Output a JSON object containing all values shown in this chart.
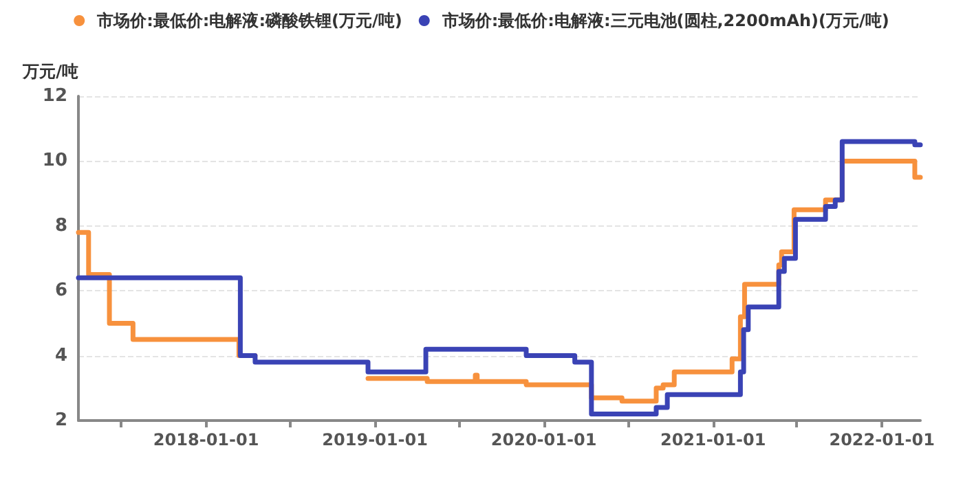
{
  "chart_data": {
    "type": "step",
    "ylabel": "万元/吨",
    "xlim": [
      "2017-03-31",
      "2022-03-25"
    ],
    "xticks": [
      {
        "value": "2017-07-01",
        "label": null
      },
      {
        "value": "2018-01-01",
        "label": "2018-01-01"
      },
      {
        "value": "2018-07-01",
        "label": null
      },
      {
        "value": "2019-01-01",
        "label": "2019-01-01"
      },
      {
        "value": "2019-07-01",
        "label": null
      },
      {
        "value": "2020-01-01",
        "label": "2020-01-01"
      },
      {
        "value": "2020-07-01",
        "label": null
      },
      {
        "value": "2021-01-01",
        "label": "2021-01-01"
      },
      {
        "value": "2021-07-01",
        "label": null
      },
      {
        "value": "2022-01-01",
        "label": "2022-01-01"
      }
    ],
    "ylim": [
      2,
      12
    ],
    "yticks": [
      2,
      4,
      6,
      8,
      10,
      12
    ],
    "grid": "y",
    "legend": "top",
    "marker": "none",
    "line_style": "solid",
    "series": [
      {
        "name": "市场价:最低价:电解液:磷酸铁锂(万元/吨)",
        "color": "#f7913d",
        "x": [
          "2017-03-31",
          "2017-04-22",
          "2017-06-06",
          "2017-07-27",
          "2018-03-13",
          "2018-04-17",
          "2018-12-17",
          "2019-04-24",
          "2019-08-06",
          "2019-08-10",
          "2019-11-24",
          "2020-04-13",
          "2020-06-18",
          "2020-08-31",
          "2020-09-15",
          "2020-10-09",
          "2021-02-11",
          "2021-03-01",
          "2021-03-10",
          "2021-05-23",
          "2021-05-29",
          "2021-06-25",
          "2021-09-01",
          "2021-10-07",
          "2022-03-13",
          "2022-03-25"
        ],
        "values": [
          7.8,
          6.5,
          5.0,
          4.5,
          4.0,
          null,
          3.3,
          3.2,
          3.4,
          3.2,
          3.1,
          2.7,
          2.6,
          3.0,
          3.1,
          3.5,
          3.9,
          5.2,
          6.2,
          6.8,
          7.2,
          8.5,
          8.8,
          10.0,
          9.5,
          9.5
        ]
      },
      {
        "name": "市场价:最低价:电解液:三元电池(圆柱,2200mAh)(万元/吨)",
        "color": "#3a43b5",
        "x": [
          "2017-03-31",
          "2018-03-16",
          "2018-04-17",
          "2018-12-17",
          "2019-04-21",
          "2019-11-24",
          "2020-03-08",
          "2020-04-13",
          "2020-08-31",
          "2020-09-24",
          "2021-03-01",
          "2021-03-08",
          "2021-03-18",
          "2021-05-23",
          "2021-06-04",
          "2021-06-28",
          "2021-09-01",
          "2021-09-22",
          "2021-10-07",
          "2022-03-13",
          "2022-03-25"
        ],
        "values": [
          6.4,
          4.0,
          3.8,
          3.5,
          4.2,
          4.0,
          3.8,
          2.2,
          2.4,
          2.8,
          3.5,
          4.8,
          5.5,
          6.6,
          7.0,
          8.2,
          8.6,
          8.8,
          10.6,
          10.5,
          10.5
        ]
      }
    ]
  }
}
